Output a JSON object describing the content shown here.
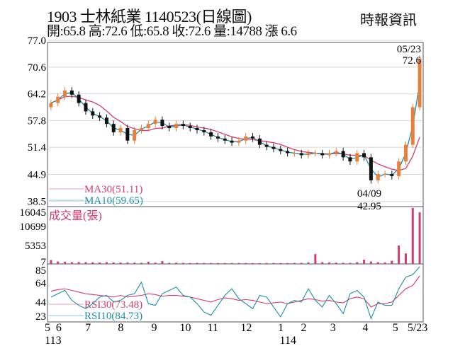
{
  "header": {
    "title": "1903  士林紙業 1140523(日線圖)",
    "summary": "開:65.8 高:72.6 低:65.8 收:72.6 量:14788 漲 6.6",
    "source": "時報資訊"
  },
  "colors": {
    "up": "#e8803a",
    "down": "#111111",
    "ma30": "#d63a6b",
    "ma10": "#1a8fa6",
    "volume": "#d63a6b",
    "grid": "#d8d8d8"
  },
  "chart_data": [
    {
      "type": "candlestick",
      "title": "price",
      "yticks": [
        "77.0",
        "70.6",
        "64.2",
        "57.8",
        "51.4",
        "44.9",
        "38.5"
      ],
      "ylim": [
        37.2,
        76.5
      ],
      "closes": [
        62,
        63.5,
        65,
        64,
        62,
        60,
        59,
        58.5,
        57,
        55,
        56,
        53,
        55.5,
        56,
        57,
        58,
        56.5,
        56,
        57,
        56.5,
        56,
        55.5,
        55,
        54,
        53.5,
        53,
        52.5,
        53,
        54,
        53.5,
        52,
        51.5,
        51,
        50.5,
        50,
        50,
        49.5,
        50,
        50,
        49.5,
        50,
        50.5,
        49,
        48,
        50,
        49,
        43.5,
        45,
        45,
        44.5,
        48,
        52,
        61,
        72.6
      ],
      "first_open": 61,
      "legend": [
        {
          "label": "MA30(51.11)",
          "color": "#d63a6b"
        },
        {
          "label": "MA10(59.65)",
          "color": "#1a8fa6"
        }
      ],
      "annotations": [
        {
          "date": "05/23",
          "value": "72.6"
        },
        {
          "date": "04/09",
          "value": "42.95"
        }
      ]
    },
    {
      "type": "bar",
      "title": "成交量(張)",
      "yticks": [
        "16045",
        "10699",
        "5353",
        "7"
      ],
      "ylim": [
        0,
        16045
      ],
      "values": [
        1100,
        700,
        600,
        500,
        550,
        500,
        450,
        400,
        500,
        420,
        380,
        400,
        350,
        300,
        600,
        350,
        800,
        300,
        350,
        300,
        250,
        280,
        260,
        250,
        240,
        230,
        250,
        260,
        240,
        230,
        220,
        250,
        260,
        240,
        230,
        280,
        300,
        400,
        2800,
        500,
        400,
        350,
        300,
        300,
        500,
        1200,
        700,
        500,
        400,
        900,
        5300,
        3000,
        16045,
        14788
      ]
    },
    {
      "type": "line",
      "title": "RSI",
      "yticks": [
        "85",
        "64",
        "44",
        "23"
      ],
      "ylim": [
        18,
        88
      ],
      "series": [
        {
          "name": "RSI30(73.48)",
          "color": "#d63a6b",
          "values": [
            55,
            57,
            58,
            56,
            54,
            52,
            51,
            50,
            49,
            48,
            50,
            48,
            49,
            50,
            52,
            51,
            49,
            50,
            50,
            49,
            48,
            46,
            44,
            42,
            45,
            47,
            46,
            44,
            45,
            44,
            42,
            40,
            41,
            42,
            40,
            42,
            44,
            46,
            45,
            43,
            44,
            42,
            41,
            46,
            48,
            46,
            36,
            40,
            40,
            42,
            50,
            58,
            62,
            73.48
          ]
        },
        {
          "name": "RSI10(84.73)",
          "color": "#1a8fa6",
          "values": [
            48,
            52,
            56,
            44,
            38,
            34,
            40,
            48,
            50,
            42,
            44,
            50,
            52,
            66,
            40,
            38,
            52,
            56,
            60,
            50,
            48,
            40,
            30,
            26,
            38,
            50,
            58,
            46,
            40,
            34,
            50,
            48,
            36,
            24,
            40,
            44,
            42,
            58,
            44,
            36,
            50,
            40,
            28,
            52,
            56,
            48,
            22,
            42,
            38,
            38,
            58,
            72,
            75,
            84.73
          ]
        }
      ]
    }
  ],
  "xaxis": {
    "months": [
      {
        "label": "5",
        "frac": 0.0
      },
      {
        "label": "6",
        "frac": 0.03
      },
      {
        "label": "7",
        "frac": 0.108
      },
      {
        "label": "8",
        "frac": 0.195
      },
      {
        "label": "9",
        "frac": 0.284
      },
      {
        "label": "10",
        "frac": 0.367
      },
      {
        "label": "11",
        "frac": 0.44
      },
      {
        "label": "12",
        "frac": 0.529
      },
      {
        "label": "1",
        "frac": 0.621
      },
      {
        "label": "2",
        "frac": 0.682
      },
      {
        "label": "3",
        "frac": 0.76
      },
      {
        "label": "4",
        "frac": 0.846
      },
      {
        "label": "5",
        "frac": 0.926
      },
      {
        "label": "5/23",
        "frac": 0.985
      }
    ],
    "years": [
      {
        "label": "113",
        "frac": 0.015
      },
      {
        "label": "114",
        "frac": 0.64
      }
    ]
  }
}
